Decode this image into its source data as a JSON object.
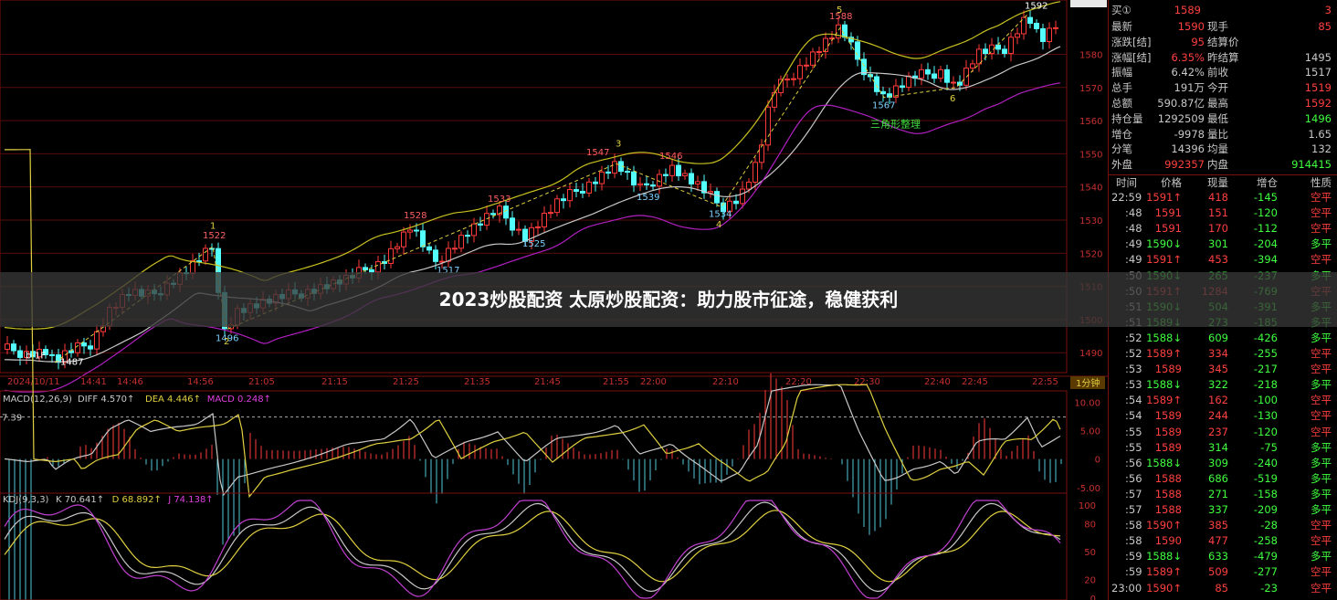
{
  "banner": {
    "title": "2023炒股配资 太原炒股配资：助力股市征途，稳健获利"
  },
  "chart_data": [
    {
      "type": "candlestick",
      "price_axis": {
        "ticks": [
          1580,
          1570,
          1560,
          1550,
          1540,
          1530,
          1520,
          1510,
          1500,
          1490
        ],
        "ylim": [
          1484,
          1595
        ]
      },
      "time_labels": [
        "2024/10/11",
        "14:41",
        "14:46",
        "14:56",
        "21:05",
        "21:15",
        "21:25",
        "21:35",
        "21:45",
        "21:55",
        "22:00",
        "22:10",
        "22:20",
        "22:30",
        "22:40",
        "22:45",
        "22:55"
      ],
      "period": "1分钟",
      "price_labels": [
        "1487",
        "1522",
        "1496",
        "1528",
        "1517",
        "1533",
        "1525",
        "1547",
        "1539",
        "1546",
        "1534",
        "1588",
        "1567",
        "1592"
      ],
      "wave_labels": [
        "b-1F",
        "1",
        "2",
        "3",
        "4",
        "5",
        "6"
      ],
      "annotation": "三角形整理",
      "colors": {
        "up": "#ff3a3a",
        "down": "#54ffff",
        "boll": "#c8c020",
        "ma": "#c8c8c8",
        "lower": "#b020c0"
      }
    },
    {
      "type": "bar",
      "title": "MACD(12,26,9)",
      "legend": [
        {
          "name": "DIFF",
          "value": "4.570↑",
          "color": "#c8c8c8"
        },
        {
          "name": "DEA",
          "value": "4.446↑",
          "color": "#e0d040"
        },
        {
          "name": "MACD",
          "value": "0.248↑",
          "color": "#e040e0"
        }
      ],
      "ticks": [
        "10.00",
        "5.00",
        "0",
        "-5.00"
      ],
      "ref_label": "7.39",
      "ylim": [
        -6,
        12
      ]
    },
    {
      "type": "line",
      "title": "KDJ(9,3,3)",
      "legend": [
        {
          "name": "K",
          "value": "70.641↑",
          "color": "#c8c8c8"
        },
        {
          "name": "D",
          "value": "68.892↑",
          "color": "#e0d040"
        },
        {
          "name": "J",
          "value": "74.138↑",
          "color": "#e040e0"
        }
      ],
      "ticks": [
        "100",
        "80",
        "50",
        "20",
        "0"
      ],
      "ylim": [
        0,
        105
      ]
    }
  ],
  "quote": {
    "buy": {
      "label": "买①",
      "price": "1589",
      "qty": "3"
    },
    "rows": [
      {
        "l1": "最新",
        "v1": "1590",
        "c1": "#ff4040",
        "l2": "现手",
        "v2": "85",
        "c2": "#ff4040"
      },
      {
        "l1": "涨跌[结]",
        "v1": "95",
        "c1": "#ff4040",
        "l2": "结算价",
        "v2": "",
        "c2": "#c8c8c8"
      },
      {
        "l1": "涨幅[结]",
        "v1": "6.35%",
        "c1": "#ff4040",
        "l2": "昨结算",
        "v2": "1495",
        "c2": "#c8c8c8"
      },
      {
        "l1": "振幅",
        "v1": "6.42%",
        "c1": "#c8c8c8",
        "l2": "前收",
        "v2": "1517",
        "c2": "#c8c8c8"
      },
      {
        "l1": "总手",
        "v1": "191万",
        "c1": "#c8c8c8",
        "l2": "今开",
        "v2": "1519",
        "c2": "#ff4040"
      },
      {
        "l1": "总额",
        "v1": "590.87亿",
        "c1": "#c8c8c8",
        "l2": "最高",
        "v2": "1592",
        "c2": "#ff4040"
      },
      {
        "l1": "持仓量",
        "v1": "1292509",
        "c1": "#c8c8c8",
        "l2": "最低",
        "v2": "1496",
        "c2": "#40ff40"
      },
      {
        "l1": "增仓",
        "v1": "-9978",
        "c1": "#c8c8c8",
        "l2": "量比",
        "v2": "1.65",
        "c2": "#c8c8c8"
      },
      {
        "l1": "分笔",
        "v1": "14396",
        "c1": "#c8c8c8",
        "l2": "均量",
        "v2": "132",
        "c2": "#c8c8c8"
      },
      {
        "l1": "外盘",
        "v1": "992357",
        "c1": "#ff4040",
        "l2": "内盘",
        "v2": "914415",
        "c2": "#40ff40"
      }
    ]
  },
  "ticks_table": {
    "headers": [
      "时间",
      "价格",
      "现量",
      "增仓",
      "性质"
    ],
    "rows": [
      [
        "22:59",
        "1591↑",
        "418",
        "-145",
        "空平"
      ],
      [
        ":48",
        "1591",
        "151",
        "-120",
        "空平"
      ],
      [
        ":48",
        "1591",
        "170",
        "-112",
        "空平"
      ],
      [
        ":49",
        "1590↓",
        "301",
        "-204",
        "多平"
      ],
      [
        ":49",
        "1591↑",
        "453",
        "-394",
        "空平"
      ],
      [
        ":50",
        "1590↓",
        "265",
        "-237",
        "多平"
      ],
      [
        ":50",
        "1591↑",
        "1284",
        "-769",
        "空平"
      ],
      [
        ":51",
        "1590↓",
        "504",
        "-391",
        "多平"
      ],
      [
        ":51",
        "1589↓",
        "273",
        "-185",
        "多平"
      ],
      [
        ":52",
        "1588↓",
        "609",
        "-426",
        "多平"
      ],
      [
        ":52",
        "1589↑",
        "334",
        "-255",
        "空平"
      ],
      [
        ":53",
        "1589",
        "345",
        "-217",
        "空平"
      ],
      [
        ":53",
        "1588↓",
        "322",
        "-218",
        "多平"
      ],
      [
        ":54",
        "1589↑",
        "162",
        "-100",
        "空平"
      ],
      [
        ":54",
        "1589",
        "244",
        "-130",
        "空平"
      ],
      [
        ":55",
        "1589",
        "237",
        "-120",
        "空平"
      ],
      [
        ":55",
        "1589",
        "314",
        "-75",
        "多平"
      ],
      [
        ":56",
        "1588↓",
        "309",
        "-240",
        "多平"
      ],
      [
        ":56",
        "1588",
        "686",
        "-519",
        "多平"
      ],
      [
        ":57",
        "1588",
        "271",
        "-158",
        "多平"
      ],
      [
        ":57",
        "1588",
        "337",
        "-209",
        "多平"
      ],
      [
        ":58",
        "1590↑",
        "385",
        "-28",
        "空平"
      ],
      [
        ":58",
        "1590",
        "477",
        "-258",
        "空平"
      ],
      [
        ":59",
        "1588↓",
        "633",
        "-479",
        "多平"
      ],
      [
        ":59",
        "1589↑",
        "509",
        "-277",
        "空平"
      ],
      [
        "23:00",
        "1590↑",
        "85",
        "-23",
        "空平"
      ]
    ]
  }
}
